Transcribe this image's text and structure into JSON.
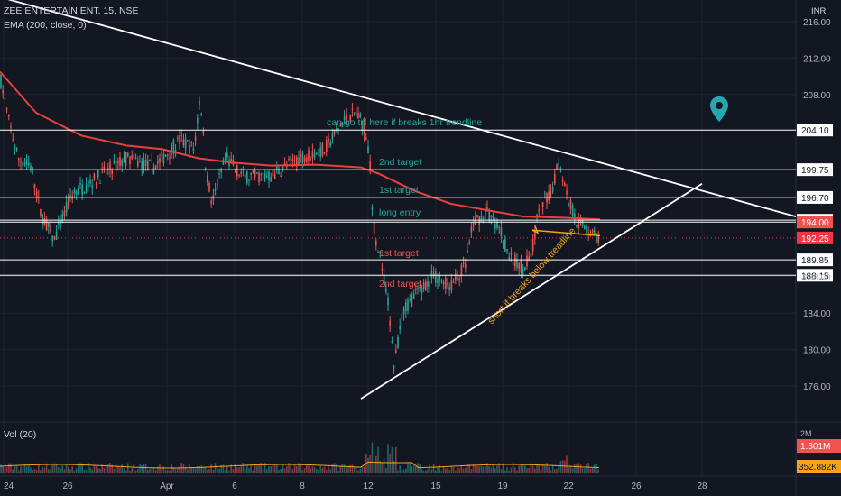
{
  "header": {
    "symbol": "ZEE ENTERTAIN ENT, 15, NSE",
    "indicator": "EMA (200, close, 0)",
    "currency": "INR"
  },
  "volume": {
    "label": "Vol (20)",
    "scale_label": "2M",
    "last_badge": "1.301M",
    "avg_badge": "352.882K"
  },
  "price_axis": {
    "ticks": [
      176.0,
      180.0,
      184.0,
      188.0,
      208.0,
      212.0,
      216.0
    ],
    "tick_labels": [
      "176.00",
      "180.00",
      "184.00",
      "188.00",
      "208.00",
      "212.00",
      "216.00"
    ]
  },
  "time_axis": {
    "labels": [
      "24",
      "26",
      "Apr",
      "6",
      "8",
      "12",
      "15",
      "19",
      "22",
      "26",
      "28"
    ]
  },
  "levels": [
    {
      "price": 204.1,
      "label": "204.10"
    },
    {
      "price": 199.75,
      "label": "199.75"
    },
    {
      "price": 196.7,
      "label": "196.70"
    },
    {
      "price": 194.2,
      "label": "194.20"
    },
    {
      "price": 194.0,
      "label": "194.00"
    },
    {
      "price": 189.85,
      "label": "189.85"
    },
    {
      "price": 188.15,
      "label": "188.15"
    }
  ],
  "current_price": {
    "price": 192.25,
    "label": "192.25"
  },
  "annotations": [
    {
      "text": "can go till here if breaks 1hr trendline",
      "color": "#26a69a"
    },
    {
      "text": "2nd target",
      "color": "#26a69a"
    },
    {
      "text": "1st target",
      "color": "#26a69a"
    },
    {
      "text": "long entry",
      "color": "#26a69a"
    },
    {
      "text": "1st target",
      "color": "#ef5350"
    },
    {
      "text": "2nd target",
      "color": "#ef5350"
    },
    {
      "text": "short if breaks below treadline",
      "color": "#f7a21b"
    }
  ],
  "colors": {
    "background": "#131722",
    "up": "#26a69a",
    "down": "#ef5350",
    "ema": "#e8413c",
    "trendline": "#ffffff",
    "marker": "#24a7b0",
    "current_price": "#f23645"
  },
  "icons": {
    "marker": "map-pin-icon"
  }
}
